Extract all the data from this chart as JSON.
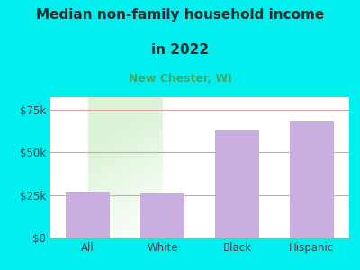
{
  "title_line1": "Median non-family household income",
  "title_line2": "in 2022",
  "subtitle": "New Chester, WI",
  "categories": [
    "All",
    "White",
    "Black",
    "Hispanic"
  ],
  "values": [
    27000,
    26000,
    63000,
    68000
  ],
  "bar_color": "#c9aee0",
  "background_outer": "#00f0f0",
  "background_plot_topleft": "#c8e6c0",
  "background_plot_bottomright": "#f5f5f0",
  "grid_color": "#e0a0a0",
  "title_color": "#2a2a2a",
  "subtitle_color": "#3aaa6a",
  "tick_color": "#444444",
  "ylim": [
    0,
    82500
  ],
  "yticks": [
    0,
    25000,
    50000,
    75000
  ],
  "ytick_labels": [
    "$0",
    "$25k",
    "$50k",
    "$75k"
  ],
  "title_fontsize": 11,
  "subtitle_fontsize": 9,
  "tick_fontsize": 8.5
}
